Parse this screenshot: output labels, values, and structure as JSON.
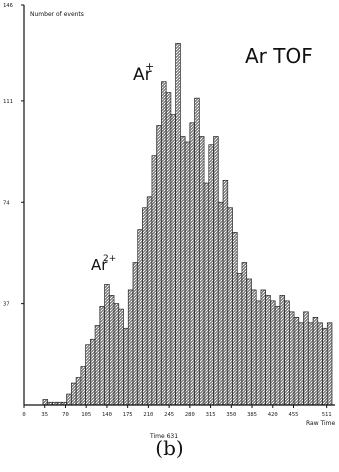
{
  "chart_data": {
    "type": "bar",
    "title": "Ar TOF",
    "ylabel": "Number of events",
    "xlabel": "Raw Time",
    "ylim": [
      0,
      146
    ],
    "xlim": [
      0,
      520
    ],
    "yticks": [
      "146",
      "111",
      "74",
      "37"
    ],
    "xticks": [
      "0",
      "35",
      "70",
      "105",
      "140",
      "175",
      "210",
      "245",
      "280",
      "315",
      "350",
      "385",
      "420",
      "455",
      "511"
    ],
    "bin_width": 8,
    "x": [
      0,
      8,
      16,
      24,
      32,
      40,
      48,
      56,
      64,
      72,
      80,
      88,
      96,
      104,
      112,
      120,
      128,
      136,
      144,
      152,
      160,
      168,
      176,
      184,
      192,
      200,
      208,
      216,
      224,
      232,
      240,
      248,
      256,
      264,
      272,
      280,
      288,
      296,
      304,
      312,
      320,
      328,
      336,
      344,
      352,
      360,
      368,
      376,
      384,
      392,
      400,
      408,
      416,
      424,
      432,
      440,
      448,
      456,
      464,
      472,
      480,
      488,
      496,
      504,
      512
    ],
    "values": [
      0,
      0,
      0,
      0,
      2,
      1,
      1,
      1,
      1,
      4,
      8,
      10,
      14,
      22,
      24,
      29,
      36,
      44,
      40,
      37,
      35,
      28,
      42,
      52,
      64,
      72,
      76,
      91,
      102,
      118,
      114,
      106,
      132,
      98,
      96,
      103,
      112,
      98,
      81,
      95,
      98,
      74,
      82,
      72,
      63,
      48,
      52,
      46,
      42,
      38,
      42,
      40,
      38,
      36,
      40,
      38,
      34,
      32,
      30,
      34,
      30,
      32,
      30,
      28,
      30
    ],
    "annotations": [
      {
        "text": "Ar",
        "sup": "+",
        "x": 226
      },
      {
        "text": "Ar",
        "sup": "2+",
        "x": 112
      }
    ],
    "grid": false,
    "legend": "none"
  },
  "footer_label": "Time 631",
  "caption": "(b)"
}
